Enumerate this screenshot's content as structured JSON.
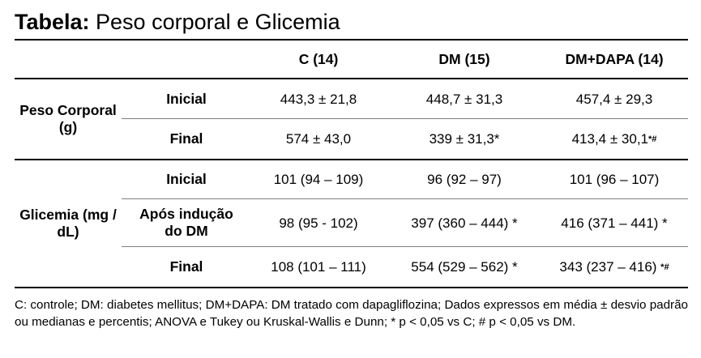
{
  "title": {
    "prefix": "Tabela:",
    "text": " Peso corporal e Glicemia"
  },
  "table": {
    "columns": [
      "C (14)",
      "DM (15)",
      "DM+DAPA (14)"
    ],
    "groups": [
      {
        "label": "Peso Corporal (g)",
        "rows": [
          {
            "label": "Inicial",
            "values": [
              "443,3 ± 21,8",
              "448,7 ± 31,3",
              "457,4 ± 29,3"
            ],
            "marks": [
              "",
              "",
              ""
            ]
          },
          {
            "label": "Final",
            "values": [
              "574 ± 43,0",
              "339 ± 31,3*",
              "413,4 ± 30,1"
            ],
            "marks": [
              "",
              "",
              "*#"
            ]
          }
        ]
      },
      {
        "label": "Glicemia (mg / dL)",
        "rows": [
          {
            "label": "Inicial",
            "values": [
              "101 (94 – 109)",
              "96 (92 – 97)",
              "101 (96 – 107)"
            ],
            "marks": [
              "",
              "",
              ""
            ]
          },
          {
            "label": "Após indução do DM",
            "values": [
              "98 (95 - 102)",
              "397 (360 – 444) *",
              "416 (371 – 441) *"
            ],
            "marks": [
              "",
              "",
              ""
            ]
          },
          {
            "label": "Final",
            "values": [
              "108 (101 – 111)",
              "554 (529 – 562) *",
              "343 (237 – 416) "
            ],
            "marks": [
              "",
              "",
              "*#"
            ]
          }
        ]
      }
    ]
  },
  "footnote": "C: controle; DM: diabetes mellitus; DM+DAPA: DM tratado com dapagliflozina; Dados expressos em média ± desvio padrão ou medianas e percentis; ANOVA e Tukey ou Kruskal-Wallis e Dunn; * p < 0,05 vs C; # p < 0,05 vs DM."
}
